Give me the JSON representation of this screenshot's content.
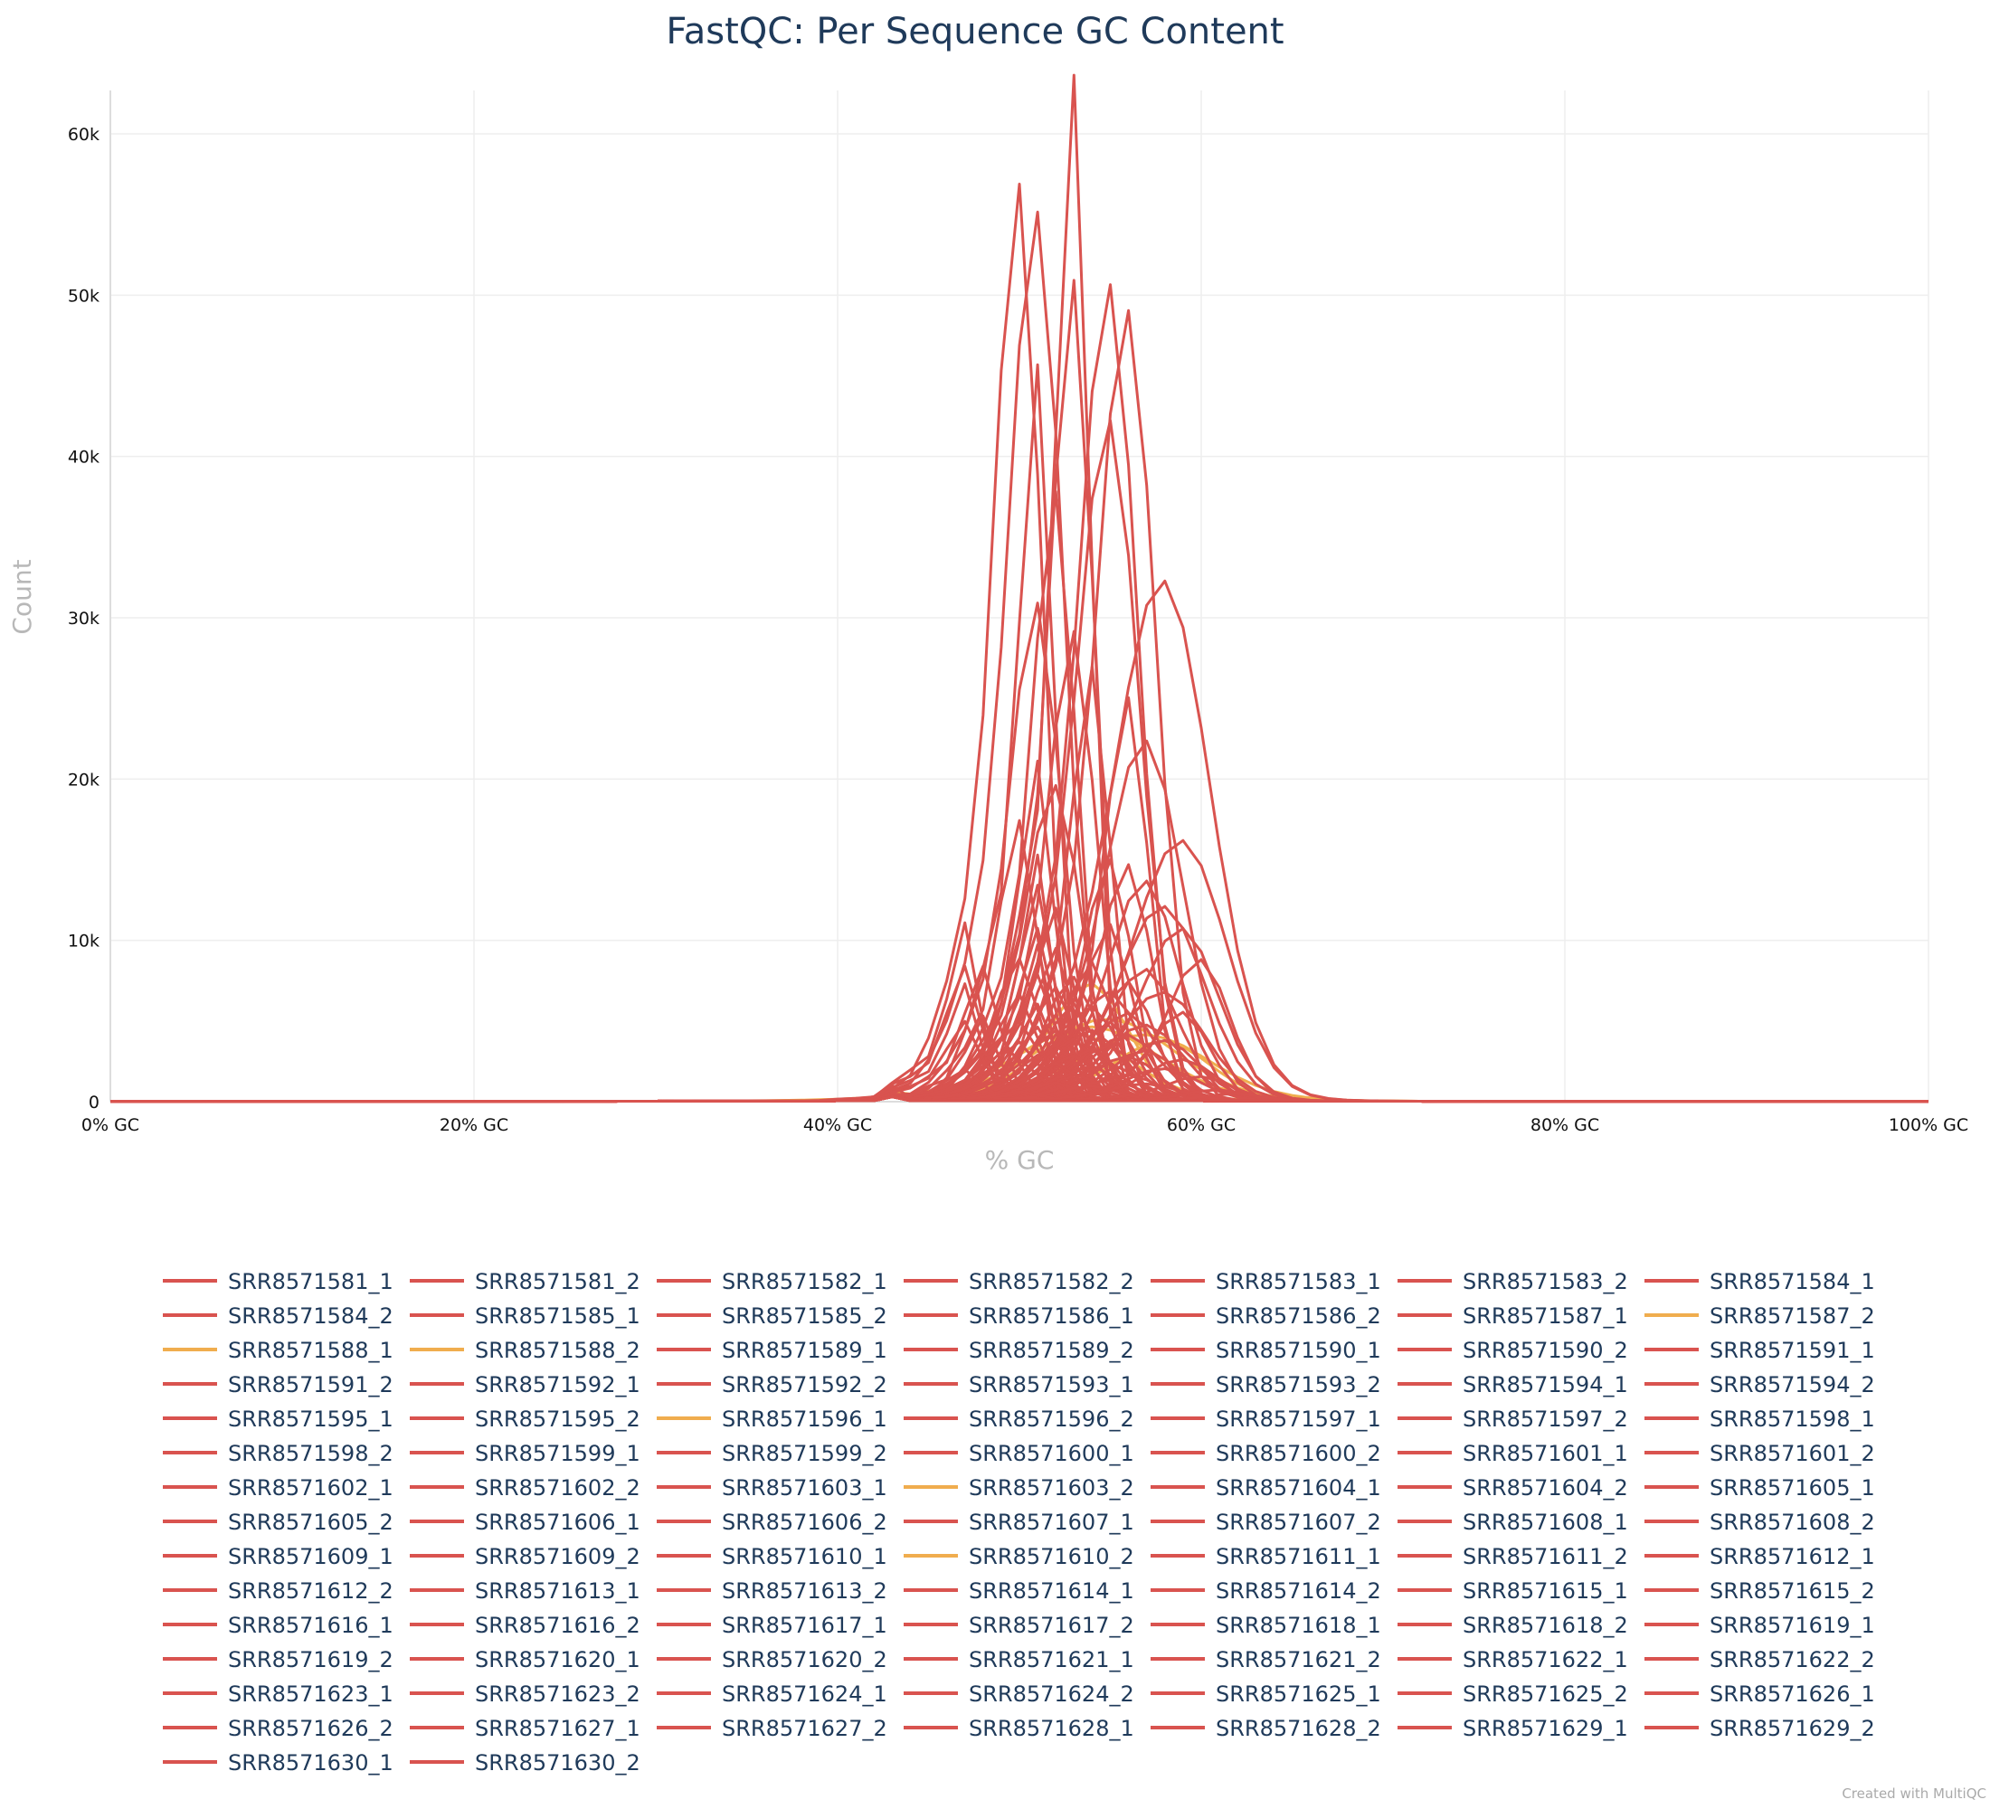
{
  "chart_data": {
    "type": "line",
    "title": "FastQC: Per Sequence GC Content",
    "xlabel": "% GC",
    "ylabel": "Count",
    "xlim": [
      0,
      100
    ],
    "ylim": [
      0,
      60000
    ],
    "x_ticks": [
      "0% GC",
      "20% GC",
      "40% GC",
      "60% GC",
      "80% GC",
      "100% GC"
    ],
    "y_ticks": [
      "0",
      "10k",
      "20k",
      "30k",
      "40k",
      "50k",
      "60k"
    ],
    "grid": true,
    "legend_position": "bottom",
    "colors": {
      "fail": "#d9534f",
      "warn": "#f0ad4e"
    },
    "series": [
      {
        "name": "SRR8571581_1",
        "status": "fail",
        "peak_x": 50,
        "peak_y": 51000,
        "width": 1.2
      },
      {
        "name": "SRR8571581_2",
        "status": "fail",
        "peak_x": 51,
        "peak_y": 48500,
        "width": 1.4
      },
      {
        "name": "SRR8571582_1",
        "status": "fail",
        "peak_x": 53,
        "peak_y": 59500,
        "width": 0.9
      },
      {
        "name": "SRR8571582_2",
        "status": "fail",
        "peak_x": 53,
        "peak_y": 46200,
        "width": 1.1
      },
      {
        "name": "SRR8571583_1",
        "status": "fail",
        "peak_x": 55,
        "peak_y": 44200,
        "width": 1.5
      },
      {
        "name": "SRR8571583_2",
        "status": "fail",
        "peak_x": 56,
        "peak_y": 42800,
        "width": 1.5
      },
      {
        "name": "SRR8571584_1",
        "status": "fail",
        "peak_x": 51,
        "peak_y": 42700,
        "width": 0.9
      },
      {
        "name": "SRR8571584_2",
        "status": "fail",
        "peak_x": 55,
        "peak_y": 36600,
        "width": 1.6
      },
      {
        "name": "SRR8571585_1",
        "status": "fail",
        "peak_x": 52,
        "peak_y": 34300,
        "width": 1.1
      },
      {
        "name": "SRR8571585_2",
        "status": "fail",
        "peak_x": 51,
        "peak_y": 27400,
        "width": 1.3
      },
      {
        "name": "SRR8571586_1",
        "status": "fail",
        "peak_x": 58,
        "peak_y": 27100,
        "width": 2.5
      },
      {
        "name": "SRR8571586_2",
        "status": "fail",
        "peak_x": 53,
        "peak_y": 26100,
        "width": 1.2
      },
      {
        "name": "SRR8571587_1",
        "status": "fail",
        "peak_x": 54,
        "peak_y": 24800,
        "width": 1.0
      },
      {
        "name": "SRR8571587_2",
        "status": "warn",
        "peak_x": 55,
        "peak_y": 4200,
        "width": 3.5
      },
      {
        "name": "SRR8571588_1",
        "status": "warn",
        "peak_x": 54,
        "peak_y": 3800,
        "width": 3.6
      },
      {
        "name": "SRR8571588_2",
        "status": "warn",
        "peak_x": 57,
        "peak_y": 3400,
        "width": 3.4
      },
      {
        "name": "SRR8571589_1",
        "status": "fail",
        "peak_x": 56,
        "peak_y": 22700,
        "width": 1.1
      },
      {
        "name": "SRR8571589_2",
        "status": "fail",
        "peak_x": 57,
        "peak_y": 19000,
        "width": 2.0
      },
      {
        "name": "SRR8571590_1",
        "status": "fail",
        "peak_x": 51,
        "peak_y": 19700,
        "width": 0.9
      },
      {
        "name": "SRR8571590_2",
        "status": "fail",
        "peak_x": 52,
        "peak_y": 17200,
        "width": 1.4
      },
      {
        "name": "SRR8571591_1",
        "status": "fail",
        "peak_x": 50,
        "peak_y": 16000,
        "width": 1.0
      },
      {
        "name": "SRR8571591_2",
        "status": "fail",
        "peak_x": 59,
        "peak_y": 13600,
        "width": 2.4
      },
      {
        "name": "SRR8571592_1",
        "status": "fail",
        "peak_x": 55,
        "peak_y": 13400,
        "width": 1.2
      },
      {
        "name": "SRR8571592_2",
        "status": "fail",
        "peak_x": 51,
        "peak_y": 14500,
        "width": 0.8
      },
      {
        "name": "SRR8571593_1",
        "status": "fail",
        "peak_x": 56,
        "peak_y": 13000,
        "width": 1.3
      },
      {
        "name": "SRR8571593_2",
        "status": "fail",
        "peak_x": 57,
        "peak_y": 11700,
        "width": 1.8
      },
      {
        "name": "SRR8571594_1",
        "status": "fail",
        "peak_x": 51,
        "peak_y": 12500,
        "width": 0.9
      },
      {
        "name": "SRR8571594_2",
        "status": "fail",
        "peak_x": 52,
        "peak_y": 11000,
        "width": 1.0
      },
      {
        "name": "SRR8571595_1",
        "status": "fail",
        "peak_x": 47,
        "peak_y": 10500,
        "width": 0.8
      },
      {
        "name": "SRR8571595_2",
        "status": "fail",
        "peak_x": 58,
        "peak_y": 10200,
        "width": 2.2
      },
      {
        "name": "SRR8571596_1",
        "status": "warn",
        "peak_x": 53,
        "peak_y": 3500,
        "width": 3.0
      },
      {
        "name": "SRR8571596_2",
        "status": "fail",
        "peak_x": 51,
        "peak_y": 10000,
        "width": 0.9
      },
      {
        "name": "SRR8571597_1",
        "status": "fail",
        "peak_x": 55,
        "peak_y": 9800,
        "width": 1.2
      },
      {
        "name": "SRR8571597_2",
        "status": "fail",
        "peak_x": 59,
        "peak_y": 9100,
        "width": 2.0
      },
      {
        "name": "SRR8571598_1",
        "status": "fail",
        "peak_x": 51,
        "peak_y": 9200,
        "width": 0.8
      },
      {
        "name": "SRR8571598_2",
        "status": "fail",
        "peak_x": 52,
        "peak_y": 8700,
        "width": 1.0
      },
      {
        "name": "SRR8571599_1",
        "status": "fail",
        "peak_x": 47,
        "peak_y": 7800,
        "width": 0.9
      },
      {
        "name": "SRR8571599_2",
        "status": "fail",
        "peak_x": 48,
        "peak_y": 7800,
        "width": 0.9
      },
      {
        "name": "SRR8571600_1",
        "status": "fail",
        "peak_x": 50,
        "peak_y": 8000,
        "width": 1.1
      },
      {
        "name": "SRR8571600_2",
        "status": "fail",
        "peak_x": 54,
        "peak_y": 7700,
        "width": 1.2
      },
      {
        "name": "SRR8571601_1",
        "status": "fail",
        "peak_x": 60,
        "peak_y": 7600,
        "width": 1.6
      },
      {
        "name": "SRR8571601_2",
        "status": "fail",
        "peak_x": 57,
        "peak_y": 7000,
        "width": 1.8
      },
      {
        "name": "SRR8571602_1",
        "status": "fail",
        "peak_x": 51,
        "peak_y": 7200,
        "width": 1.0
      },
      {
        "name": "SRR8571602_2",
        "status": "fail",
        "peak_x": 47,
        "peak_y": 6900,
        "width": 0.8
      },
      {
        "name": "SRR8571603_1",
        "status": "fail",
        "peak_x": 53,
        "peak_y": 6800,
        "width": 1.3
      },
      {
        "name": "SRR8571603_2",
        "status": "warn",
        "peak_x": 54,
        "peak_y": 6200,
        "width": 2.0
      },
      {
        "name": "SRR8571604_1",
        "status": "fail",
        "peak_x": 56,
        "peak_y": 6500,
        "width": 1.4
      },
      {
        "name": "SRR8571604_2",
        "status": "fail",
        "peak_x": 52,
        "peak_y": 6400,
        "width": 1.1
      },
      {
        "name": "SRR8571605_1",
        "status": "fail",
        "peak_x": 50,
        "peak_y": 6100,
        "width": 1.0
      },
      {
        "name": "SRR8571605_2",
        "status": "fail",
        "peak_x": 55,
        "peak_y": 5900,
        "width": 1.6
      },
      {
        "name": "SRR8571606_1",
        "status": "fail",
        "peak_x": 58,
        "peak_y": 5700,
        "width": 2.2
      },
      {
        "name": "SRR8571606_2",
        "status": "fail",
        "peak_x": 51,
        "peak_y": 5600,
        "width": 0.9
      },
      {
        "name": "SRR8571607_1",
        "status": "fail",
        "peak_x": 53,
        "peak_y": 5400,
        "width": 1.2
      },
      {
        "name": "SRR8571607_2",
        "status": "fail",
        "peak_x": 48,
        "peak_y": 5000,
        "width": 0.8
      },
      {
        "name": "SRR8571608_1",
        "status": "fail",
        "peak_x": 54,
        "peak_y": 5100,
        "width": 1.5
      },
      {
        "name": "SRR8571608_2",
        "status": "fail",
        "peak_x": 59,
        "peak_y": 4800,
        "width": 1.5
      },
      {
        "name": "SRR8571609_1",
        "status": "fail",
        "peak_x": 52,
        "peak_y": 4900,
        "width": 1.0
      },
      {
        "name": "SRR8571609_2",
        "status": "fail",
        "peak_x": 56,
        "peak_y": 4700,
        "width": 1.7
      },
      {
        "name": "SRR8571610_1",
        "status": "fail",
        "peak_x": 50,
        "peak_y": 4500,
        "width": 1.1
      },
      {
        "name": "SRR8571610_2",
        "status": "warn",
        "peak_x": 58,
        "peak_y": 3100,
        "width": 2.5
      },
      {
        "name": "SRR8571611_1",
        "status": "fail",
        "peak_x": 47,
        "peak_y": 4600,
        "width": 0.9
      },
      {
        "name": "SRR8571611_2",
        "status": "fail",
        "peak_x": 53,
        "peak_y": 4400,
        "width": 1.3
      },
      {
        "name": "SRR8571612_1",
        "status": "fail",
        "peak_x": 55,
        "peak_y": 4300,
        "width": 1.4
      },
      {
        "name": "SRR8571612_2",
        "status": "fail",
        "peak_x": 51,
        "peak_y": 4200,
        "width": 1.0
      },
      {
        "name": "SRR8571613_1",
        "status": "fail",
        "peak_x": 57,
        "peak_y": 4000,
        "width": 2.0
      },
      {
        "name": "SRR8571613_2",
        "status": "fail",
        "peak_x": 52,
        "peak_y": 3900,
        "width": 1.2
      },
      {
        "name": "SRR8571614_1",
        "status": "fail",
        "peak_x": 54,
        "peak_y": 3800,
        "width": 1.6
      },
      {
        "name": "SRR8571614_2",
        "status": "fail",
        "peak_x": 49,
        "peak_y": 3600,
        "width": 1.0
      },
      {
        "name": "SRR8571615_1",
        "status": "fail",
        "peak_x": 56,
        "peak_y": 3500,
        "width": 1.8
      },
      {
        "name": "SRR8571615_2",
        "status": "fail",
        "peak_x": 53,
        "peak_y": 3400,
        "width": 1.3
      },
      {
        "name": "SRR8571616_1",
        "status": "fail",
        "peak_x": 50,
        "peak_y": 3300,
        "width": 1.1
      },
      {
        "name": "SRR8571616_2",
        "status": "fail",
        "peak_x": 58,
        "peak_y": 3200,
        "width": 1.9
      },
      {
        "name": "SRR8571617_1",
        "status": "fail",
        "peak_x": 52,
        "peak_y": 3100,
        "width": 1.2
      },
      {
        "name": "SRR8571617_2",
        "status": "fail",
        "peak_x": 55,
        "peak_y": 3000,
        "width": 1.5
      },
      {
        "name": "SRR8571618_1",
        "status": "fail",
        "peak_x": 48,
        "peak_y": 2900,
        "width": 0.9
      },
      {
        "name": "SRR8571618_2",
        "status": "fail",
        "peak_x": 54,
        "peak_y": 2800,
        "width": 1.4
      },
      {
        "name": "SRR8571619_1",
        "status": "fail",
        "peak_x": 57,
        "peak_y": 2700,
        "width": 1.7
      },
      {
        "name": "SRR8571619_2",
        "status": "fail",
        "peak_x": 51,
        "peak_y": 2600,
        "width": 1.0
      },
      {
        "name": "SRR8571620_1",
        "status": "fail",
        "peak_x": 53,
        "peak_y": 2500,
        "width": 1.3
      },
      {
        "name": "SRR8571620_2",
        "status": "fail",
        "peak_x": 56,
        "peak_y": 2400,
        "width": 1.6
      },
      {
        "name": "SRR8571621_1",
        "status": "fail",
        "peak_x": 50,
        "peak_y": 2300,
        "width": 1.1
      },
      {
        "name": "SRR8571621_2",
        "status": "fail",
        "peak_x": 59,
        "peak_y": 2200,
        "width": 1.8
      },
      {
        "name": "SRR8571622_1",
        "status": "fail",
        "peak_x": 52,
        "peak_y": 2100,
        "width": 1.2
      },
      {
        "name": "SRR8571622_2",
        "status": "fail",
        "peak_x": 55,
        "peak_y": 2000,
        "width": 1.5
      },
      {
        "name": "SRR8571623_1",
        "status": "fail",
        "peak_x": 54,
        "peak_y": 1900,
        "width": 1.4
      },
      {
        "name": "SRR8571623_2",
        "status": "fail",
        "peak_x": 47,
        "peak_y": 1800,
        "width": 0.9
      },
      {
        "name": "SRR8571624_1",
        "status": "fail",
        "peak_x": 58,
        "peak_y": 1700,
        "width": 1.9
      },
      {
        "name": "SRR8571624_2",
        "status": "fail",
        "peak_x": 51,
        "peak_y": 1600,
        "width": 1.0
      },
      {
        "name": "SRR8571625_1",
        "status": "fail",
        "peak_x": 53,
        "peak_y": 1500,
        "width": 1.3
      },
      {
        "name": "SRR8571625_2",
        "status": "fail",
        "peak_x": 56,
        "peak_y": 1400,
        "width": 1.6
      },
      {
        "name": "SRR8571626_1",
        "status": "fail",
        "peak_x": 60,
        "peak_y": 1300,
        "width": 1.7
      },
      {
        "name": "SRR8571626_2",
        "status": "fail",
        "peak_x": 49,
        "peak_y": 1200,
        "width": 1.0
      },
      {
        "name": "SRR8571627_1",
        "status": "fail",
        "peak_x": 55,
        "peak_y": 1100,
        "width": 1.5
      },
      {
        "name": "SRR8571627_2",
        "status": "fail",
        "peak_x": 52,
        "peak_y": 1000,
        "width": 1.2
      },
      {
        "name": "SRR8571628_1",
        "status": "fail",
        "peak_x": 57,
        "peak_y": 900,
        "width": 1.8
      },
      {
        "name": "SRR8571628_2",
        "status": "fail",
        "peak_x": 54,
        "peak_y": 800,
        "width": 1.4
      },
      {
        "name": "SRR8571629_1",
        "status": "fail",
        "peak_x": 43,
        "peak_y": 700,
        "width": 0.6
      },
      {
        "name": "SRR8571629_2",
        "status": "fail",
        "peak_x": 61,
        "peak_y": 600,
        "width": 1.5
      },
      {
        "name": "SRR8571630_1",
        "status": "fail",
        "peak_x": 50,
        "peak_y": 500,
        "width": 1.1
      },
      {
        "name": "SRR8571630_2",
        "status": "fail",
        "peak_x": 62,
        "peak_y": 400,
        "width": 1.4
      }
    ]
  },
  "credit": "Created with MultiQC"
}
